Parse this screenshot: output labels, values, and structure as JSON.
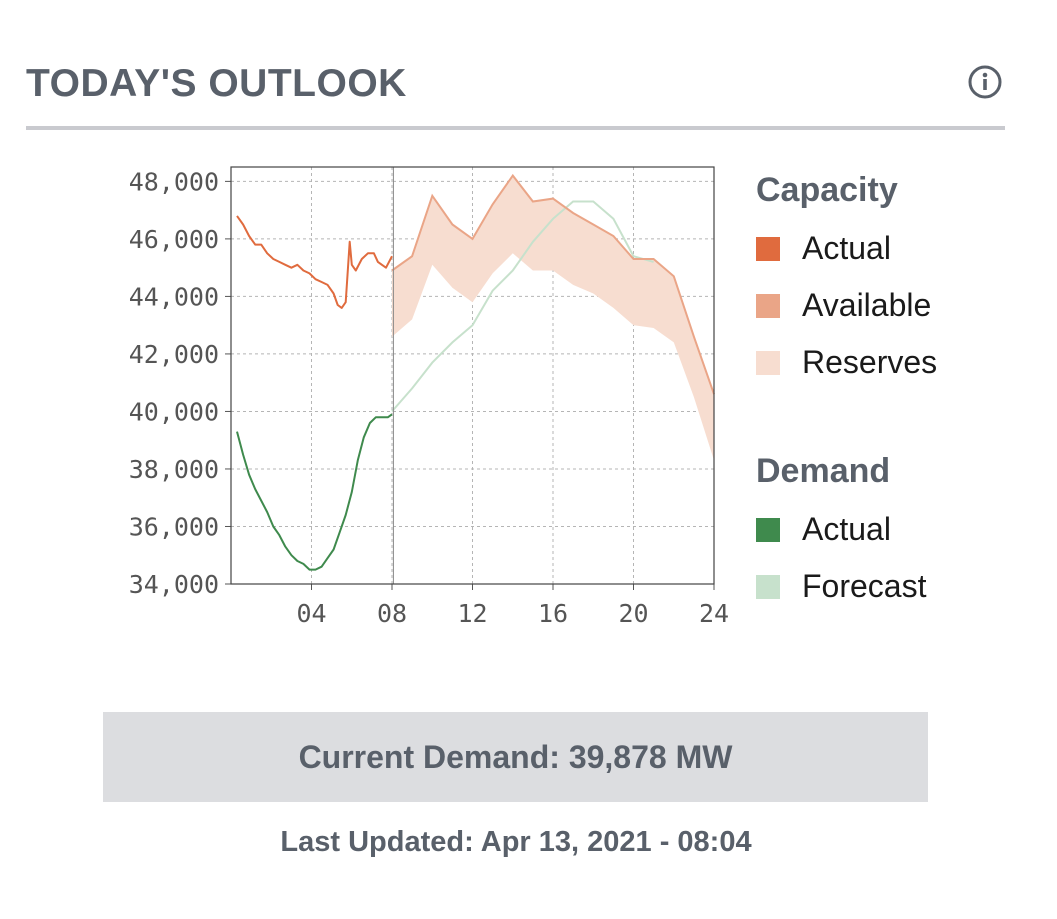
{
  "header": {
    "title": "TODAY'S OUTLOOK",
    "info_icon": "info-circle-icon"
  },
  "legend": {
    "capacity_heading": "Capacity",
    "capacity_items": [
      {
        "label": "Actual",
        "color": "#e06b3e"
      },
      {
        "label": "Available",
        "color": "#eaa587"
      },
      {
        "label": "Reserves",
        "color": "#f7ddd0"
      }
    ],
    "demand_heading": "Demand",
    "demand_items": [
      {
        "label": "Actual",
        "color": "#3f8a4d"
      },
      {
        "label": "Forecast",
        "color": "#c7e1cc"
      }
    ]
  },
  "current_demand": "Current Demand: 39,878 MW",
  "last_updated": "Last Updated: Apr 13, 2021 - 08:04",
  "chart_data": {
    "type": "line",
    "x_range": [
      0,
      24
    ],
    "ylim": [
      34000,
      48500
    ],
    "x_ticks": [
      {
        "value": 4,
        "label": "04"
      },
      {
        "value": 8,
        "label": "08"
      },
      {
        "value": 12,
        "label": "12"
      },
      {
        "value": 16,
        "label": "16"
      },
      {
        "value": 20,
        "label": "20"
      },
      {
        "value": 24,
        "label": "24"
      }
    ],
    "y_ticks": [
      {
        "value": 34000,
        "label": "34,000"
      },
      {
        "value": 36000,
        "label": "36,000"
      },
      {
        "value": 38000,
        "label": "38,000"
      },
      {
        "value": 40000,
        "label": "40,000"
      },
      {
        "value": 42000,
        "label": "42,000"
      },
      {
        "value": 44000,
        "label": "44,000"
      },
      {
        "value": 46000,
        "label": "46,000"
      },
      {
        "value": 48000,
        "label": "48,000"
      }
    ],
    "grid": true,
    "current_time": 8.07,
    "series": [
      {
        "name": "Capacity Actual",
        "color": "#e06b3e",
        "points": [
          [
            0.3,
            46800
          ],
          [
            0.6,
            46500
          ],
          [
            0.9,
            46100
          ],
          [
            1.2,
            45800
          ],
          [
            1.5,
            45800
          ],
          [
            1.8,
            45500
          ],
          [
            2.1,
            45300
          ],
          [
            2.4,
            45200
          ],
          [
            2.7,
            45100
          ],
          [
            3.0,
            45000
          ],
          [
            3.3,
            45100
          ],
          [
            3.6,
            44900
          ],
          [
            3.9,
            44800
          ],
          [
            4.2,
            44600
          ],
          [
            4.5,
            44500
          ],
          [
            4.8,
            44400
          ],
          [
            5.1,
            44100
          ],
          [
            5.3,
            43700
          ],
          [
            5.5,
            43600
          ],
          [
            5.7,
            43800
          ],
          [
            5.9,
            45900
          ],
          [
            6.0,
            45100
          ],
          [
            6.2,
            44900
          ],
          [
            6.5,
            45300
          ],
          [
            6.8,
            45500
          ],
          [
            7.1,
            45500
          ],
          [
            7.3,
            45200
          ],
          [
            7.5,
            45100
          ],
          [
            7.7,
            45000
          ],
          [
            8.0,
            45400
          ]
        ]
      },
      {
        "name": "Capacity Available",
        "color": "#eaa587",
        "points": [
          [
            8.0,
            44900
          ],
          [
            9.0,
            45400
          ],
          [
            10.0,
            47500
          ],
          [
            11.0,
            46500
          ],
          [
            12.0,
            46000
          ],
          [
            13.0,
            47200
          ],
          [
            14.0,
            48200
          ],
          [
            15.0,
            47300
          ],
          [
            16.0,
            47400
          ],
          [
            17.0,
            46900
          ],
          [
            18.0,
            46500
          ],
          [
            19.0,
            46100
          ],
          [
            20.0,
            45300
          ],
          [
            21.0,
            45300
          ],
          [
            22.0,
            44700
          ],
          [
            23.0,
            42600
          ],
          [
            24.0,
            40600
          ]
        ]
      },
      {
        "name": "Reserves Lower Bound",
        "color": "#f7ddd0",
        "points": [
          [
            8.0,
            42600
          ],
          [
            9.0,
            43200
          ],
          [
            10.0,
            45100
          ],
          [
            11.0,
            44300
          ],
          [
            12.0,
            43800
          ],
          [
            13.0,
            44800
          ],
          [
            14.0,
            45500
          ],
          [
            15.0,
            44900
          ],
          [
            16.0,
            44900
          ],
          [
            17.0,
            44400
          ],
          [
            18.0,
            44100
          ],
          [
            19.0,
            43600
          ],
          [
            20.0,
            43000
          ],
          [
            21.0,
            42900
          ],
          [
            22.0,
            42400
          ],
          [
            23.0,
            40500
          ],
          [
            24.0,
            38300
          ]
        ]
      },
      {
        "name": "Demand Actual",
        "color": "#3f8a4d",
        "points": [
          [
            0.3,
            39300
          ],
          [
            0.6,
            38500
          ],
          [
            0.9,
            37800
          ],
          [
            1.2,
            37300
          ],
          [
            1.5,
            36900
          ],
          [
            1.8,
            36500
          ],
          [
            2.1,
            36000
          ],
          [
            2.4,
            35700
          ],
          [
            2.7,
            35300
          ],
          [
            3.0,
            35000
          ],
          [
            3.3,
            34800
          ],
          [
            3.6,
            34700
          ],
          [
            3.9,
            34500
          ],
          [
            4.2,
            34500
          ],
          [
            4.5,
            34600
          ],
          [
            4.8,
            34900
          ],
          [
            5.1,
            35200
          ],
          [
            5.4,
            35800
          ],
          [
            5.7,
            36400
          ],
          [
            6.0,
            37200
          ],
          [
            6.3,
            38300
          ],
          [
            6.6,
            39100
          ],
          [
            6.9,
            39600
          ],
          [
            7.2,
            39800
          ],
          [
            7.5,
            39800
          ],
          [
            7.8,
            39800
          ],
          [
            8.0,
            39900
          ]
        ]
      },
      {
        "name": "Demand Forecast",
        "color": "#c7e1cc",
        "points": [
          [
            8.0,
            40000
          ],
          [
            9.0,
            40800
          ],
          [
            10.0,
            41700
          ],
          [
            11.0,
            42400
          ],
          [
            12.0,
            43000
          ],
          [
            13.0,
            44200
          ],
          [
            14.0,
            44900
          ],
          [
            15.0,
            45900
          ],
          [
            16.0,
            46700
          ],
          [
            17.0,
            47300
          ],
          [
            18.0,
            47300
          ],
          [
            19.0,
            46700
          ],
          [
            20.0,
            45400
          ],
          [
            21.0,
            45200
          ]
        ]
      }
    ]
  }
}
